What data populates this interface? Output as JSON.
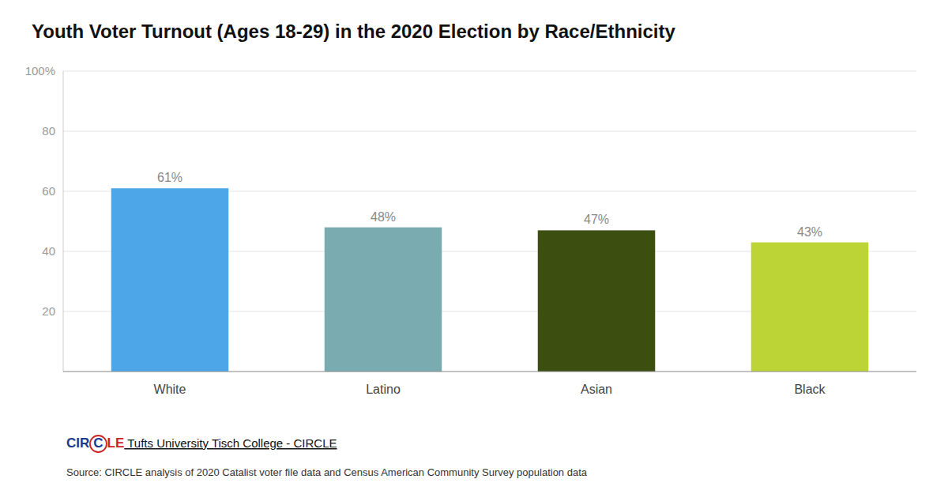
{
  "chart_data": {
    "type": "bar",
    "title": "Youth Voter Turnout (Ages 18-29) in the 2020 Election by Race/Ethnicity",
    "categories": [
      "White",
      "Latino",
      "Asian",
      "Black"
    ],
    "values": [
      61,
      48,
      47,
      43
    ],
    "value_labels": [
      "61%",
      "48%",
      "47%",
      "43%"
    ],
    "colors": [
      "#4da6e8",
      "#7aabb0",
      "#3d4f10",
      "#bcd435"
    ],
    "ylim": [
      0,
      100
    ],
    "yticks": [
      20,
      40,
      60,
      80,
      {
        "value": 100,
        "label": "100%"
      }
    ],
    "grid": true,
    "data_labels": true,
    "annotations": [
      {
        "text": "CIR",
        "color": "#1a3a8f"
      },
      {
        "text": "C",
        "color": "#1a3a8f"
      },
      {
        "text": "LE",
        "color": "#cc2222"
      },
      {
        "text": " Tufts University Tisch College - CIRCLE"
      },
      {
        "text": "Source: CIRCLE analysis of 2020 Catalist voter file data and Census American Community Survey population data"
      }
    ]
  }
}
